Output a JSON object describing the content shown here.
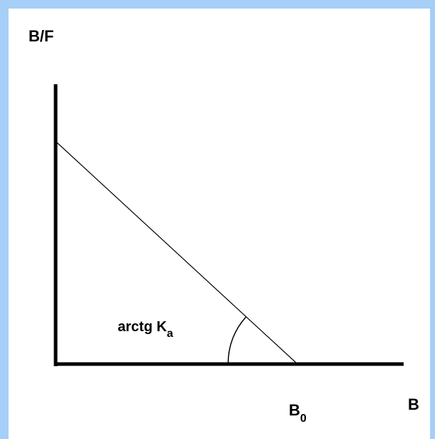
{
  "y_axis_label": "B/F",
  "x_axis_label": "B",
  "x_intercept_label": {
    "text": "B",
    "subscript": "0"
  },
  "angle_label": {
    "text": "arctg K",
    "subscript": "a"
  }
}
